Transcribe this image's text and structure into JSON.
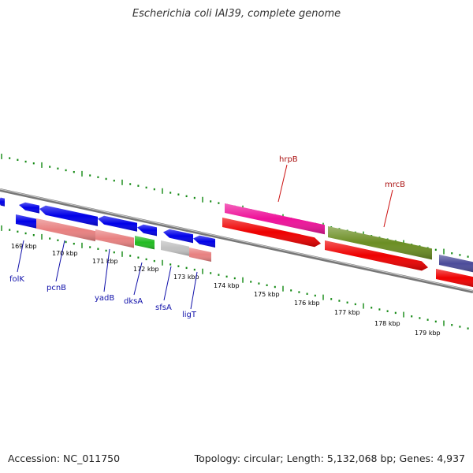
{
  "title": "Escherichia coli IAI39, complete genome",
  "footer": {
    "accession": "Accession: NC_011750",
    "summary": "Topology: circular; Length: 5,132,068 bp; Genes: 4,937"
  },
  "colors": {
    "blue": "#0000e8",
    "salmon": "#e88080",
    "green": "#22bb22",
    "gray": "#c0c0c0",
    "magenta": "#ee1199",
    "red": "#ee0000",
    "olive": "#6b8e23",
    "slate": "#4b4b99",
    "backbone": "#777777",
    "tick": "#118811",
    "label_blue": "#1111aa",
    "label_red": "#aa1111"
  },
  "scale_labels": [
    "169 kbp",
    "170 kbp",
    "171 kbp",
    "172 kbp",
    "173 kbp",
    "174 kbp",
    "175 kbp",
    "176 kbp",
    "177 kbp",
    "178 kbp",
    "179 kbp"
  ],
  "gene_labels": [
    {
      "name": "folK",
      "color": "blue"
    },
    {
      "name": "pcnB",
      "color": "blue"
    },
    {
      "name": "yadB",
      "color": "blue"
    },
    {
      "name": "dksA",
      "color": "blue"
    },
    {
      "name": "sfsA",
      "color": "blue"
    },
    {
      "name": "ligT",
      "color": "blue"
    },
    {
      "name": "hrpB",
      "color": "red"
    },
    {
      "name": "mrcB",
      "color": "red"
    }
  ]
}
